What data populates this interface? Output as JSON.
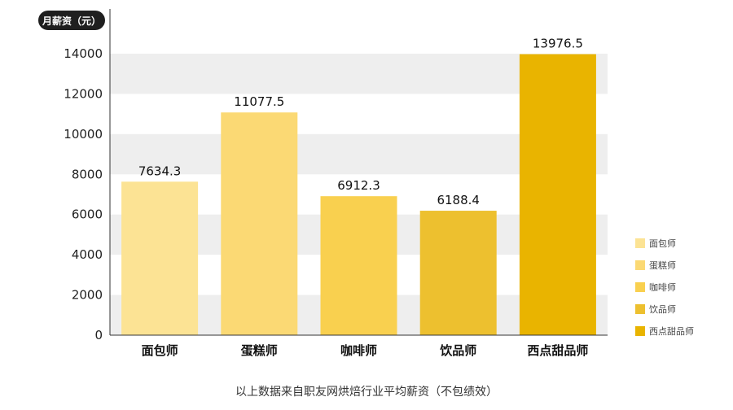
{
  "chart_data": {
    "type": "bar",
    "ylabel": "月薪资（元）",
    "categories": [
      "面包师",
      "蛋糕师",
      "咖啡师",
      "饮品师",
      "西点甜品师"
    ],
    "values": [
      7634.3,
      11077.5,
      6912.3,
      6188.4,
      13976.5
    ],
    "value_labels": [
      "7634.3",
      "11077.5",
      "6912.3",
      "6188.4",
      "13976.5"
    ],
    "ylim": [
      0,
      14000
    ],
    "yticks": [
      0,
      2000,
      4000,
      6000,
      8000,
      10000,
      12000,
      14000
    ],
    "colors": [
      "#FCE394",
      "#FBD974",
      "#F9D04F",
      "#EDC02F",
      "#E9B400"
    ],
    "legend": {
      "position": "right",
      "items": [
        "面包师",
        "蛋糕师",
        "咖啡师",
        "饮品师",
        "西点甜品师"
      ]
    },
    "grid": "alternating horizontal bands",
    "footnote": "以上数据来自职友网烘焙行业平均薪资（不包绩效）"
  }
}
